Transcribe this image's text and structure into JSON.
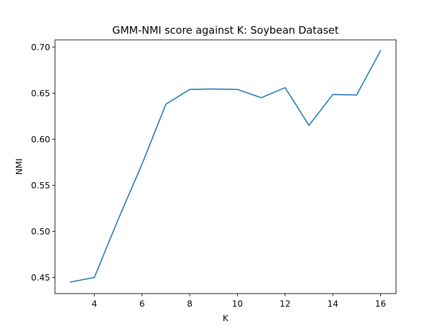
{
  "chart_data": {
    "type": "line",
    "title": "GMM-NMI score against K: Soybean Dataset",
    "xlabel": "K",
    "ylabel": "NMI",
    "xlim": [
      2.35,
      16.65
    ],
    "ylim": [
      0.4325,
      0.7078
    ],
    "x_ticks": [
      4,
      6,
      8,
      10,
      12,
      14,
      16
    ],
    "x_tick_labels": [
      "4",
      "6",
      "8",
      "10",
      "12",
      "14",
      "16"
    ],
    "y_ticks": [
      0.45,
      0.5,
      0.55,
      0.6,
      0.65,
      0.7
    ],
    "y_tick_labels": [
      "0.45",
      "0.50",
      "0.55",
      "0.60",
      "0.65",
      "0.70"
    ],
    "grid": false,
    "legend": "none",
    "series": [
      {
        "color": "#1f77b4",
        "x": [
          3,
          4,
          5,
          6,
          7,
          8,
          9,
          10,
          11,
          12,
          13,
          14,
          15,
          16
        ],
        "values": [
          0.445,
          0.45,
          0.513,
          0.573,
          0.638,
          0.654,
          0.6545,
          0.654,
          0.645,
          0.656,
          0.615,
          0.6485,
          0.648,
          0.696
        ]
      }
    ]
  }
}
